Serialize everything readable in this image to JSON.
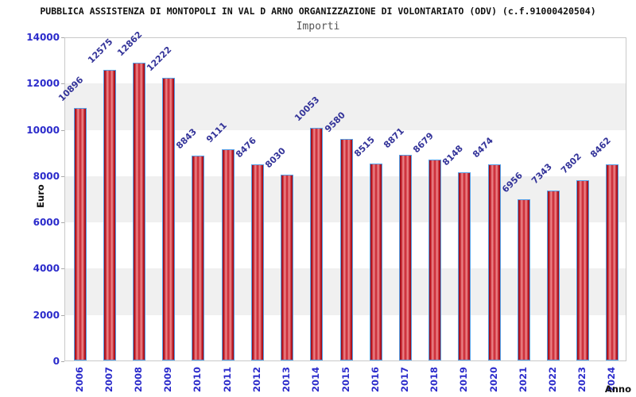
{
  "title": "PUBBLICA ASSISTENZA DI MONTOPOLI IN VAL D ARNO ORGANIZZAZIONE DI VOLONTARIATO (ODV) (c.f.91000420504)",
  "subtitle": "Importi",
  "chart_data": {
    "type": "bar",
    "title": "Importi",
    "xlabel": "Anno",
    "ylabel": "Euro",
    "categories": [
      "2006",
      "2007",
      "2008",
      "2009",
      "2010",
      "2011",
      "2012",
      "2013",
      "2014",
      "2015",
      "2016",
      "2017",
      "2018",
      "2019",
      "2020",
      "2021",
      "2022",
      "2023",
      "2024"
    ],
    "values": [
      10896,
      12575,
      12862,
      12222,
      8843,
      9111,
      8476,
      8030,
      10053,
      9580,
      8515,
      8871,
      8679,
      8148,
      8474,
      6956,
      7343,
      7802,
      8462
    ],
    "ylim": [
      0,
      14000
    ],
    "ytick_step": 2000,
    "legend": "none",
    "grid": "alternating-horizontal-bands",
    "colors": {
      "bar_center": "#c8202c",
      "bar_highlight": "#ee8b8f",
      "bar_edge": "#8f0d16",
      "bar_border": "#55a0e8",
      "value_label": "#333399",
      "axis_tick_label": "#2b2bcb",
      "band": "#f0f0f0",
      "plot_border": "#c9c9c9",
      "title": "#111111",
      "subtitle": "#555555"
    }
  }
}
